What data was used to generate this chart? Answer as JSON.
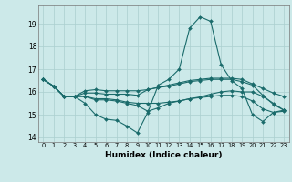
{
  "xlabel": "Humidex (Indice chaleur)",
  "background_color": "#cce9e9",
  "grid_color": "#aacfcf",
  "line_color": "#1a6b6b",
  "xlim": [
    -0.5,
    23.5
  ],
  "ylim": [
    13.8,
    19.8
  ],
  "yticks": [
    14,
    15,
    16,
    17,
    18,
    19
  ],
  "xticks": [
    0,
    1,
    2,
    3,
    4,
    5,
    6,
    7,
    8,
    9,
    10,
    11,
    12,
    13,
    14,
    15,
    16,
    17,
    18,
    19,
    20,
    21,
    22,
    23
  ],
  "lines": [
    [
      16.55,
      16.25,
      15.8,
      15.8,
      15.5,
      15.0,
      14.8,
      14.75,
      14.5,
      14.2,
      15.1,
      16.3,
      16.55,
      17.0,
      18.8,
      19.3,
      19.1,
      17.2,
      16.5,
      16.15,
      15.0,
      14.7,
      15.1,
      15.15
    ],
    [
      16.55,
      16.25,
      15.8,
      15.8,
      16.05,
      16.1,
      16.05,
      16.05,
      16.05,
      16.05,
      16.1,
      16.2,
      16.3,
      16.4,
      16.5,
      16.55,
      16.6,
      16.6,
      16.6,
      16.55,
      16.35,
      16.15,
      15.95,
      15.8
    ],
    [
      16.55,
      16.25,
      15.8,
      15.8,
      15.95,
      15.95,
      15.9,
      15.9,
      15.9,
      15.85,
      16.1,
      16.2,
      16.25,
      16.35,
      16.45,
      16.5,
      16.55,
      16.55,
      16.55,
      16.45,
      16.3,
      15.85,
      15.45,
      15.2
    ],
    [
      16.55,
      16.25,
      15.8,
      15.8,
      15.8,
      15.7,
      15.7,
      15.65,
      15.55,
      15.5,
      15.5,
      15.5,
      15.55,
      15.6,
      15.7,
      15.75,
      15.8,
      15.85,
      15.85,
      15.8,
      15.6,
      15.25,
      15.1,
      15.2
    ],
    [
      16.55,
      16.25,
      15.8,
      15.8,
      15.8,
      15.65,
      15.65,
      15.6,
      15.5,
      15.4,
      15.15,
      15.3,
      15.5,
      15.6,
      15.7,
      15.78,
      15.9,
      16.0,
      16.05,
      16.0,
      16.0,
      15.8,
      15.5,
      15.2
    ]
  ]
}
